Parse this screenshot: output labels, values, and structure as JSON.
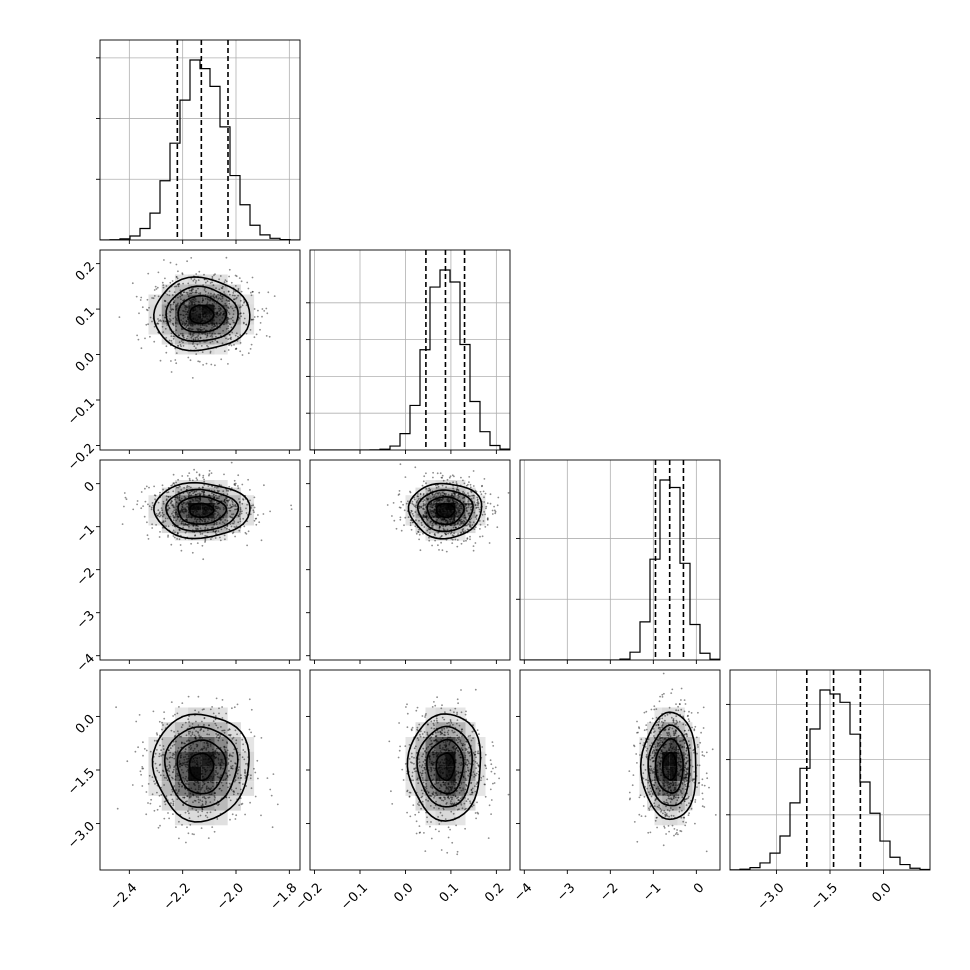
{
  "chart_data": {
    "type": "corner",
    "n_params": 4,
    "parameters": [
      {
        "ticks": [
          -2.4,
          -2.2,
          -2.0,
          -1.8
        ],
        "tick_labels": [
          "−2.4",
          "−2.2",
          "−2.0",
          "−1.8"
        ],
        "range": [
          -2.51,
          -1.76
        ],
        "mean": -2.13,
        "std": 0.09,
        "quantiles": [
          -2.22,
          -2.13,
          -2.03
        ]
      },
      {
        "ticks": [
          -0.2,
          -0.1,
          0.0,
          0.1,
          0.2
        ],
        "tick_labels": [
          "−0.2",
          "−0.1",
          "0.0",
          "0.1",
          "0.2"
        ],
        "range": [
          -0.21,
          0.23
        ],
        "mean": 0.088,
        "std": 0.04,
        "quantiles": [
          0.045,
          0.088,
          0.13
        ]
      },
      {
        "ticks": [
          -4,
          -3,
          -2,
          -1,
          0
        ],
        "tick_labels": [
          "−4",
          "−3",
          "−2",
          "−1",
          "0"
        ],
        "range": [
          -4.1,
          0.55
        ],
        "mean": -0.62,
        "std": 0.32,
        "quantiles": [
          -0.95,
          -0.62,
          -0.3
        ]
      },
      {
        "ticks": [
          -3.0,
          -1.5,
          0.0
        ],
        "tick_labels": [
          "−3.0",
          "−1.5",
          "0.0"
        ],
        "range": [
          -4.3,
          1.3
        ],
        "mean": -1.4,
        "std": 0.75,
        "quantiles": [
          -2.15,
          -1.4,
          -0.65
        ]
      }
    ],
    "hist_y_ticks": [
      [
        0.33,
        0.66,
        0.99
      ],
      [
        0.2,
        0.4,
        0.6,
        0.8
      ],
      [
        0.33,
        0.66
      ],
      [
        0.3,
        0.6,
        0.9
      ]
    ],
    "contour_levels_sigma": [
      0.5,
      1.0,
      1.5,
      2.0
    ],
    "scatter_color": "#9a9a9a",
    "density_color": "#000000",
    "grid": true
  }
}
